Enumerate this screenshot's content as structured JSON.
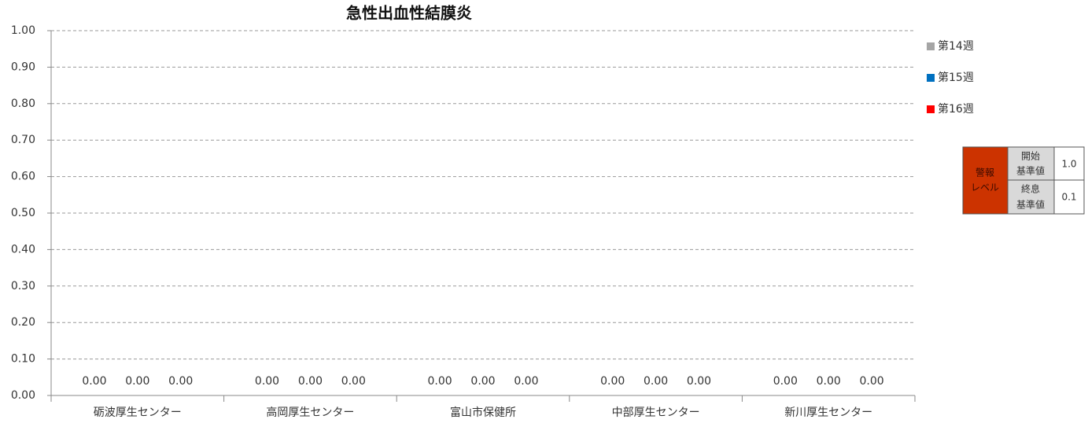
{
  "chart_data": {
    "type": "bar",
    "title": "急性出血性結膜炎",
    "categories": [
      "砺波厚生センター",
      "高岡厚生センター",
      "富山市保健所",
      "中部厚生センター",
      "新川厚生センター"
    ],
    "series": [
      {
        "name": "第14週",
        "color": "#a5a5a5",
        "values": [
          0,
          0,
          0,
          0,
          0
        ],
        "value_labels": [
          "0.00",
          "0.00",
          "0.00",
          "0.00",
          "0.00"
        ]
      },
      {
        "name": "第15週",
        "color": "#0070c0",
        "values": [
          0,
          0,
          0,
          0,
          0
        ],
        "value_labels": [
          "0.00",
          "0.00",
          "0.00",
          "0.00",
          "0.00"
        ]
      },
      {
        "name": "第16週",
        "color": "#ff0000",
        "values": [
          0,
          0,
          0,
          0,
          0
        ],
        "value_labels": [
          "0.00",
          "0.00",
          "0.00",
          "0.00",
          "0.00"
        ]
      }
    ],
    "ylim": [
      0,
      1
    ],
    "yticks": [
      {
        "value": 0,
        "label": "0.00"
      },
      {
        "value": 0.1,
        "label": "0.10"
      },
      {
        "value": 0.2,
        "label": "0.20"
      },
      {
        "value": 0.3,
        "label": "0.30"
      },
      {
        "value": 0.4,
        "label": "0.40"
      },
      {
        "value": 0.5,
        "label": "0.50"
      },
      {
        "value": 0.6,
        "label": "0.60"
      },
      {
        "value": 0.7,
        "label": "0.70"
      },
      {
        "value": 0.8,
        "label": "0.80"
      },
      {
        "value": 0.9,
        "label": "0.90"
      },
      {
        "value": 1,
        "label": "1.00"
      }
    ],
    "grid": true,
    "legend": "right"
  },
  "alert_table": {
    "label_lines": [
      "警報",
      "レベル"
    ],
    "rows": [
      {
        "name_lines": [
          "開始",
          "基準値"
        ],
        "value": "1.0"
      },
      {
        "name_lines": [
          "終息",
          "基準値"
        ],
        "value": "0.1"
      }
    ]
  }
}
